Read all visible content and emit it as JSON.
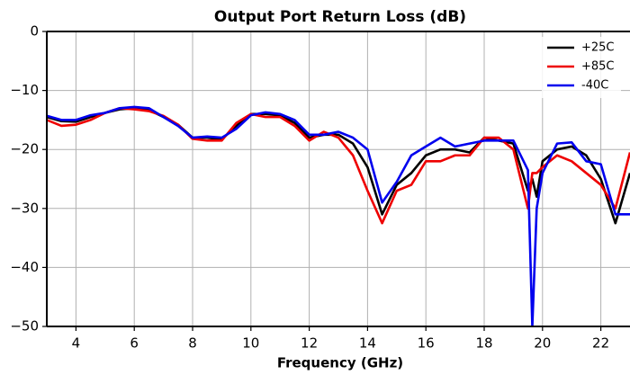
{
  "chart_data": {
    "type": "line",
    "title": "Output Port Return Loss (dB)",
    "xlabel": "Frequency (GHz)",
    "x": [
      3,
      3.5,
      4,
      4.5,
      5,
      5.5,
      6,
      6.5,
      7,
      7.5,
      8,
      8.5,
      9,
      9.5,
      10,
      10.5,
      11,
      11.5,
      12,
      12.5,
      13,
      13.5,
      14,
      14.5,
      15,
      15.5,
      16,
      16.5,
      17,
      17.5,
      18,
      18.5,
      19,
      19.5,
      19.65,
      19.8,
      20,
      20.5,
      21,
      21.5,
      22,
      22.5,
      23
    ],
    "series": [
      {
        "name": "+25C",
        "color": "#000000",
        "values": [
          -14.5,
          -15.2,
          -15.3,
          -14.5,
          -13.8,
          -13.2,
          -13,
          -13.3,
          -14.5,
          -15.8,
          -18,
          -18,
          -18.3,
          -16,
          -14,
          -14,
          -14.2,
          -15.5,
          -18,
          -17.5,
          -17.5,
          -19,
          -23,
          -31,
          -26,
          -24,
          -21,
          -20,
          -20,
          -20.5,
          -18,
          -18.5,
          -19,
          -27,
          -25,
          -28,
          -22,
          -20,
          -19.5,
          -21,
          -25,
          -32.5,
          -24
        ]
      },
      {
        "name": "+85C",
        "color": "#ee0000",
        "values": [
          -15,
          -16,
          -15.8,
          -15,
          -13.8,
          -13,
          -13.2,
          -13.5,
          -14.3,
          -15.8,
          -18.2,
          -18.5,
          -18.5,
          -15.5,
          -14,
          -14.5,
          -14.5,
          -16,
          -18.5,
          -17,
          -18,
          -21,
          -27,
          -32.5,
          -27,
          -26,
          -22,
          -22,
          -21,
          -21,
          -18,
          -18,
          -20,
          -30,
          -24,
          -24,
          -23,
          -21,
          -22,
          -24,
          -26,
          -30,
          -20.5
        ]
      },
      {
        "name": "-40C",
        "color": "#0000ee",
        "values": [
          -14.3,
          -15,
          -15,
          -14.2,
          -13.8,
          -13,
          -12.8,
          -13,
          -14.5,
          -16,
          -18,
          -17.8,
          -18,
          -16.5,
          -14.2,
          -13.7,
          -14,
          -15,
          -17.5,
          -17.5,
          -17,
          -18,
          -20,
          -29,
          -25.5,
          -21,
          -19.5,
          -18,
          -19.5,
          -19,
          -18.5,
          -18.5,
          -18.5,
          -23.5,
          -50,
          -30,
          -24,
          -19,
          -18.8,
          -22,
          -22.5,
          -31,
          -31
        ]
      }
    ],
    "xlim": [
      3,
      23
    ],
    "xticks": [
      4,
      6,
      8,
      10,
      12,
      14,
      16,
      18,
      20,
      22
    ],
    "ylim": [
      -50,
      0
    ],
    "yticks": [
      {
        "value": -50,
        "label": "−50"
      },
      {
        "value": -40,
        "label": "−40"
      },
      {
        "value": -30,
        "label": "−30"
      },
      {
        "value": -20,
        "label": "−20"
      },
      {
        "value": -10,
        "label": "−10"
      },
      0
    ],
    "grid": true,
    "legend": "upper right"
  }
}
